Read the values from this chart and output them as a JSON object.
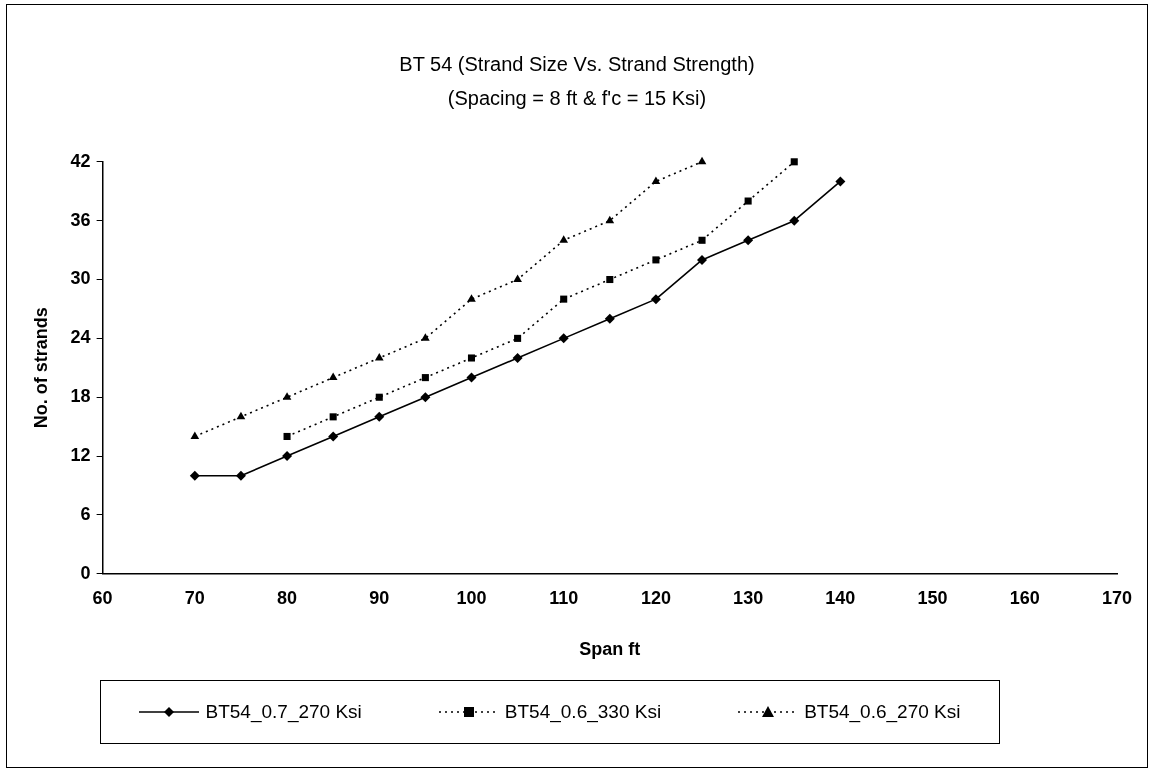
{
  "chart_data": {
    "type": "line",
    "title": "BT 54 (Strand Size Vs. Strand Strength)",
    "subtitle": "(Spacing = 8 ft & f'c = 15 Ksi)",
    "xlabel": "Span ft",
    "ylabel": "No. of strands",
    "xlim": [
      60,
      170
    ],
    "xticks": [
      60,
      70,
      80,
      90,
      100,
      110,
      120,
      130,
      140,
      150,
      160,
      170
    ],
    "ylim": [
      0,
      42
    ],
    "yticks": [
      0,
      6,
      12,
      18,
      24,
      30,
      36,
      42
    ],
    "grid": false,
    "legend": "bottom",
    "series": [
      {
        "name": "BT54_0.7_270 Ksi",
        "color": "#000000",
        "marker": "diamond",
        "line_style": "solid",
        "x": [
          70,
          75,
          80,
          85,
          90,
          95,
          100,
          105,
          110,
          115,
          120,
          125,
          130,
          135,
          140
        ],
        "values": [
          10,
          10,
          12,
          14,
          16,
          18,
          20,
          22,
          24,
          26,
          28,
          32,
          34,
          36,
          40
        ]
      },
      {
        "name": "BT54_0.6_330 Ksi",
        "color": "#000000",
        "marker": "square",
        "line_style": "dotted",
        "x": [
          80,
          85,
          90,
          95,
          100,
          105,
          110,
          115,
          120,
          125,
          130,
          135
        ],
        "values": [
          14,
          16,
          18,
          20,
          22,
          24,
          28,
          30,
          32,
          34,
          38,
          42
        ]
      },
      {
        "name": "BT54_0.6_270 Ksi",
        "color": "#000000",
        "marker": "triangle",
        "line_style": "dotted",
        "x": [
          70,
          75,
          80,
          85,
          90,
          95,
          100,
          105,
          110,
          115,
          120,
          125
        ],
        "values": [
          14,
          16,
          18,
          20,
          22,
          24,
          28,
          30,
          34,
          36,
          40,
          42
        ]
      }
    ]
  }
}
